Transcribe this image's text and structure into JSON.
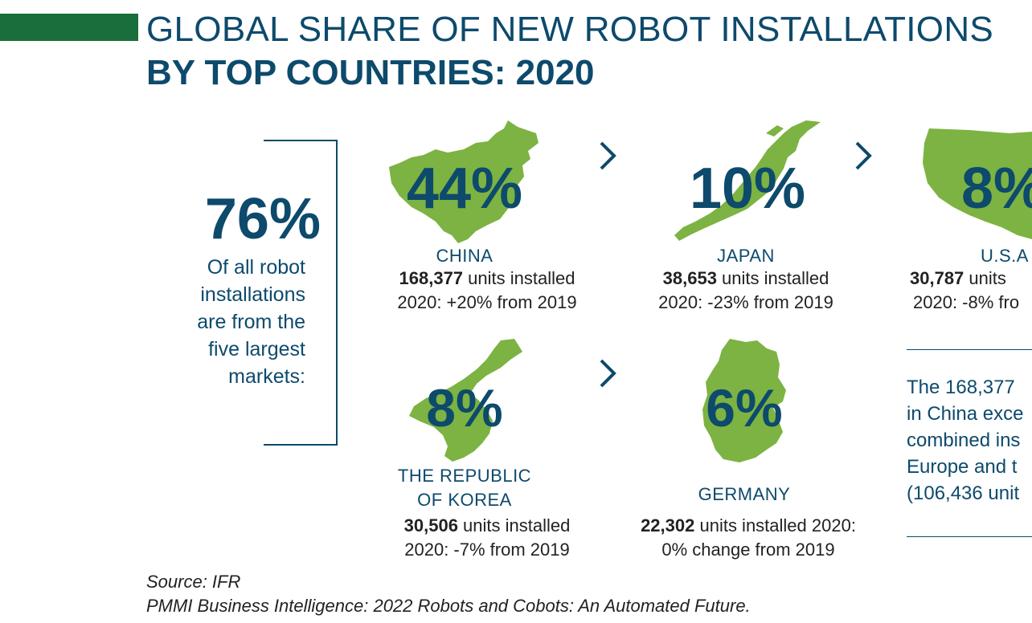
{
  "title": {
    "line1": "GLOBAL SHARE OF NEW ROBOT INSTALLATIONS",
    "line2": "BY TOP COUNTRIES: 2020"
  },
  "summary": {
    "percent": "76%",
    "text_lines": [
      "Of all robot",
      "installations",
      "are from the",
      "five largest",
      "markets:"
    ]
  },
  "countries": [
    {
      "name": "CHINA",
      "percent": "44%",
      "units": "168,377",
      "units_suffix": " units installed",
      "change": "2020: +20% from 2019"
    },
    {
      "name": "JAPAN",
      "percent": "10%",
      "units": "38,653",
      "units_suffix": " units installed",
      "change": "2020: -23% from 2019"
    },
    {
      "name": "U.S.A",
      "percent": "8%",
      "units": "30,787",
      "units_suffix": " units",
      "change": "2020: -8% fro"
    },
    {
      "name_lines": [
        "THE REPUBLIC",
        "OF KOREA"
      ],
      "percent": "8%",
      "units": "30,506",
      "units_suffix": " units installed",
      "change": "2020: -7% from 2019"
    },
    {
      "name": "GERMANY",
      "percent": "6%",
      "units": "22,302",
      "units_suffix": " units installed 2020:",
      "change": "0% change from 2019"
    }
  ],
  "note": {
    "lines": [
      "The 168,377",
      "in China exce",
      "combined ins",
      "Europe and t",
      "(106,436 unit"
    ]
  },
  "footer": {
    "source": "Source: IFR",
    "citation": "PMMI Business Intelligence: 2022 Robots and Cobots: An Automated Future."
  },
  "colors": {
    "navy": "#0d4a6c",
    "map_green": "#7cb342",
    "accent_green": "#1a6e3b"
  },
  "icons": [
    "chevron-right-icon"
  ]
}
